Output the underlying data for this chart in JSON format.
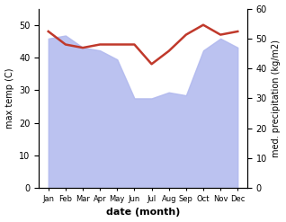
{
  "months": [
    "Jan",
    "Feb",
    "Mar",
    "Apr",
    "May",
    "Jun",
    "Jul",
    "Aug",
    "Sep",
    "Oct",
    "Nov",
    "Dec"
  ],
  "month_indices": [
    0,
    1,
    2,
    3,
    4,
    5,
    6,
    7,
    8,
    9,
    10,
    11
  ],
  "precipitation": [
    50,
    51,
    47,
    46,
    43,
    30,
    30,
    32,
    31,
    46,
    50,
    47
  ],
  "temperature": [
    48,
    44,
    43,
    44,
    44,
    44,
    38,
    42,
    47,
    50,
    47,
    48
  ],
  "precip_fill_color": "#b0b8ee",
  "temp_line_color": "#c0392b",
  "ylabel_left": "max temp (C)",
  "ylabel_right": "med. precipitation (kg/m2)",
  "xlabel": "date (month)",
  "ylim_left": [
    0,
    55
  ],
  "ylim_right": [
    0,
    60
  ],
  "yticks_left": [
    0,
    10,
    20,
    30,
    40,
    50
  ],
  "yticks_right": [
    0,
    10,
    20,
    30,
    40,
    50,
    60
  ],
  "bg_color": "#ffffff"
}
